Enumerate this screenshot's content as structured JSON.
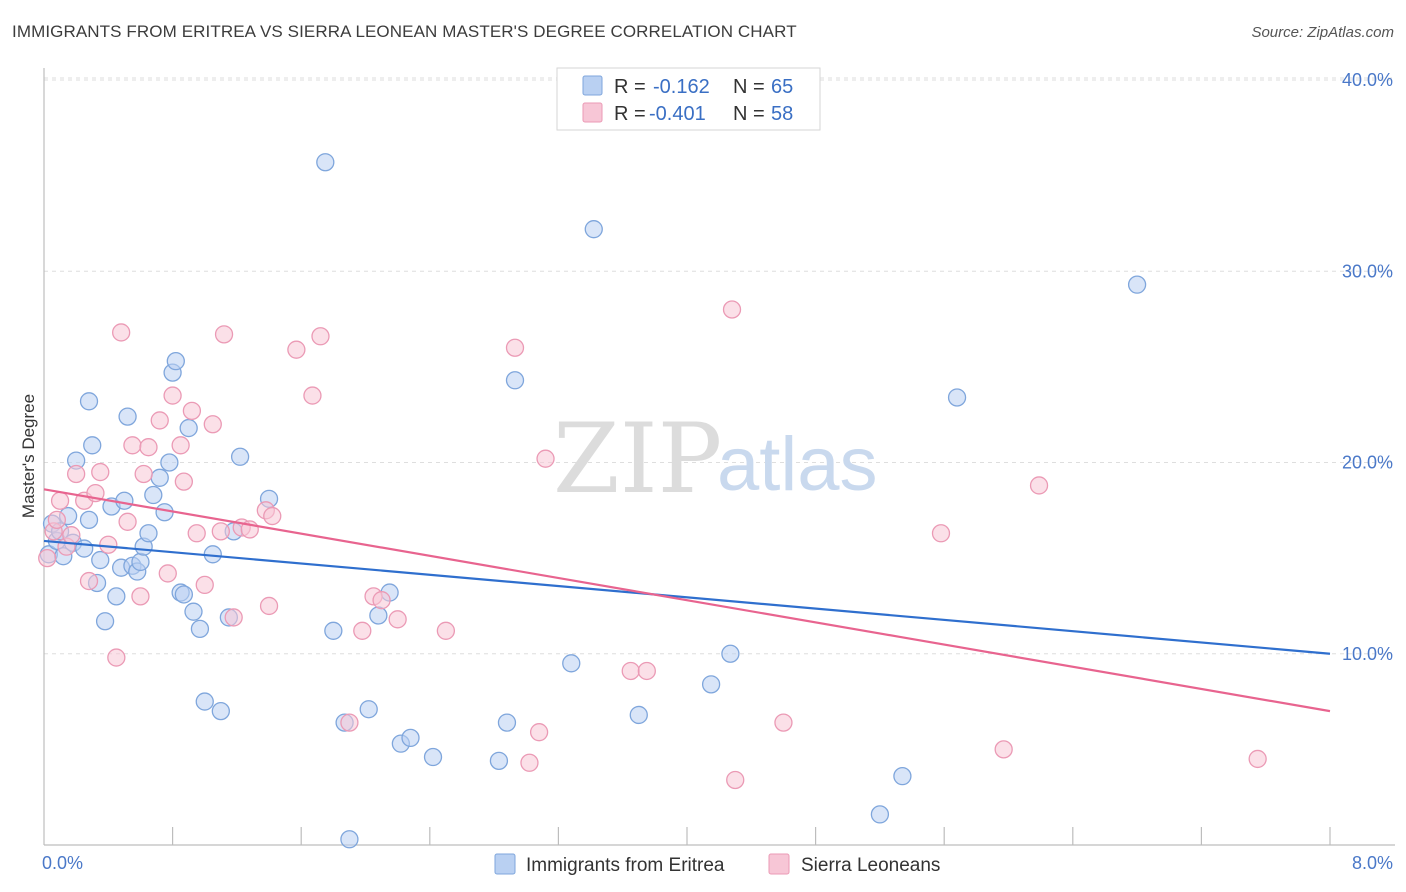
{
  "title": "IMMIGRANTS FROM ERITREA VS SIERRA LEONEAN MASTER'S DEGREE CORRELATION CHART",
  "source": "Source: ZipAtlas.com",
  "watermark": {
    "zip": "ZIP",
    "atlas": "atlas"
  },
  "legend": {
    "r_label": "R =",
    "n_label": "N =",
    "series": [
      {
        "r": "-0.162",
        "n": "65"
      },
      {
        "r": "-0.401",
        "n": "58"
      }
    ]
  },
  "colors": {
    "blue_fill": "#b9d0f2",
    "blue_stroke": "#7fa6dc",
    "blue_line": "#2f6fce",
    "pink_fill": "#f7c6d6",
    "pink_stroke": "#eb9ab5",
    "pink_line": "#e8648f"
  },
  "chart_data": {
    "type": "scatter",
    "title": "IMMIGRANTS FROM ERITREA VS SIERRA LEONEAN MASTER'S DEGREE CORRELATION CHART",
    "xlabel": "",
    "ylabel": "Master's Degree",
    "xlim": [
      0,
      8
    ],
    "ylim": [
      0,
      40
    ],
    "x_tick_labels": [
      "0.0%",
      "8.0%"
    ],
    "y_tick_labels": [
      "10.0%",
      "20.0%",
      "30.0%",
      "40.0%"
    ],
    "y_ticks": [
      10,
      20,
      30,
      40
    ],
    "grid": true,
    "legend_position": "top-center",
    "series": [
      {
        "name": "Immigrants from Eritrea",
        "color": "#7fa6dc",
        "trend": {
          "x": [
            0,
            8
          ],
          "y": [
            15.9,
            10.0
          ]
        },
        "points": [
          [
            0.03,
            15.2
          ],
          [
            0.05,
            16.8
          ],
          [
            0.08,
            15.9
          ],
          [
            0.1,
            16.4
          ],
          [
            0.12,
            15.1
          ],
          [
            0.15,
            17.2
          ],
          [
            0.18,
            15.8
          ],
          [
            0.2,
            20.1
          ],
          [
            0.25,
            15.5
          ],
          [
            0.28,
            17.0
          ],
          [
            0.3,
            20.9
          ],
          [
            0.33,
            13.7
          ],
          [
            0.35,
            14.9
          ],
          [
            0.38,
            11.7
          ],
          [
            0.42,
            17.7
          ],
          [
            0.45,
            13.0
          ],
          [
            0.48,
            14.5
          ],
          [
            0.5,
            18.0
          ],
          [
            0.52,
            22.4
          ],
          [
            0.55,
            14.6
          ],
          [
            0.58,
            14.3
          ],
          [
            0.6,
            14.8
          ],
          [
            0.62,
            15.6
          ],
          [
            0.65,
            16.3
          ],
          [
            0.68,
            18.3
          ],
          [
            0.72,
            19.2
          ],
          [
            0.75,
            17.4
          ],
          [
            0.78,
            20.0
          ],
          [
            0.8,
            24.7
          ],
          [
            0.82,
            25.3
          ],
          [
            0.85,
            13.2
          ],
          [
            0.87,
            13.1
          ],
          [
            0.9,
            21.8
          ],
          [
            0.93,
            12.2
          ],
          [
            0.97,
            11.3
          ],
          [
            1.0,
            7.5
          ],
          [
            1.05,
            15.2
          ],
          [
            1.1,
            7.0
          ],
          [
            1.15,
            11.9
          ],
          [
            1.18,
            16.4
          ],
          [
            1.22,
            20.3
          ],
          [
            1.4,
            18.1
          ],
          [
            1.75,
            35.7
          ],
          [
            1.8,
            11.2
          ],
          [
            1.87,
            6.4
          ],
          [
            1.9,
            0.3
          ],
          [
            2.02,
            7.1
          ],
          [
            2.08,
            12.0
          ],
          [
            2.15,
            13.2
          ],
          [
            2.22,
            5.3
          ],
          [
            2.28,
            5.6
          ],
          [
            2.42,
            4.6
          ],
          [
            2.83,
            4.4
          ],
          [
            2.88,
            6.4
          ],
          [
            2.93,
            24.3
          ],
          [
            3.28,
            9.5
          ],
          [
            3.42,
            32.2
          ],
          [
            3.7,
            6.8
          ],
          [
            4.15,
            8.4
          ],
          [
            4.27,
            10.0
          ],
          [
            5.2,
            1.6
          ],
          [
            5.34,
            3.6
          ],
          [
            5.68,
            23.4
          ],
          [
            6.8,
            29.3
          ],
          [
            0.28,
            23.2
          ]
        ]
      },
      {
        "name": "Sierra Leoneans",
        "color": "#eb9ab5",
        "trend": {
          "x": [
            0,
            8
          ],
          "y": [
            18.6,
            7.0
          ]
        },
        "points": [
          [
            0.02,
            15.0
          ],
          [
            0.06,
            16.4
          ],
          [
            0.1,
            18.0
          ],
          [
            0.14,
            15.6
          ],
          [
            0.17,
            16.2
          ],
          [
            0.2,
            19.4
          ],
          [
            0.25,
            18.0
          ],
          [
            0.28,
            13.8
          ],
          [
            0.32,
            18.4
          ],
          [
            0.35,
            19.5
          ],
          [
            0.4,
            15.7
          ],
          [
            0.45,
            9.8
          ],
          [
            0.48,
            26.8
          ],
          [
            0.52,
            16.9
          ],
          [
            0.55,
            20.9
          ],
          [
            0.6,
            13.0
          ],
          [
            0.62,
            19.4
          ],
          [
            0.65,
            20.8
          ],
          [
            0.72,
            22.2
          ],
          [
            0.77,
            14.2
          ],
          [
            0.8,
            23.5
          ],
          [
            0.85,
            20.9
          ],
          [
            0.87,
            19.0
          ],
          [
            0.92,
            22.7
          ],
          [
            0.95,
            16.3
          ],
          [
            1.0,
            13.6
          ],
          [
            1.05,
            22.0
          ],
          [
            1.1,
            16.4
          ],
          [
            1.12,
            26.7
          ],
          [
            1.18,
            11.9
          ],
          [
            1.23,
            16.6
          ],
          [
            1.28,
            16.5
          ],
          [
            1.38,
            17.5
          ],
          [
            1.4,
            12.5
          ],
          [
            1.42,
            17.2
          ],
          [
            1.57,
            25.9
          ],
          [
            1.67,
            23.5
          ],
          [
            1.72,
            26.6
          ],
          [
            1.9,
            6.4
          ],
          [
            1.98,
            11.2
          ],
          [
            2.05,
            13.0
          ],
          [
            2.1,
            12.8
          ],
          [
            2.2,
            11.8
          ],
          [
            2.5,
            11.2
          ],
          [
            2.93,
            26.0
          ],
          [
            3.02,
            4.3
          ],
          [
            3.08,
            5.9
          ],
          [
            3.12,
            20.2
          ],
          [
            3.65,
            9.1
          ],
          [
            3.75,
            9.1
          ],
          [
            4.28,
            28.0
          ],
          [
            4.3,
            3.4
          ],
          [
            4.6,
            6.4
          ],
          [
            5.58,
            16.3
          ],
          [
            5.97,
            5.0
          ],
          [
            6.19,
            18.8
          ],
          [
            7.55,
            4.5
          ],
          [
            0.08,
            17.0
          ]
        ]
      }
    ]
  }
}
